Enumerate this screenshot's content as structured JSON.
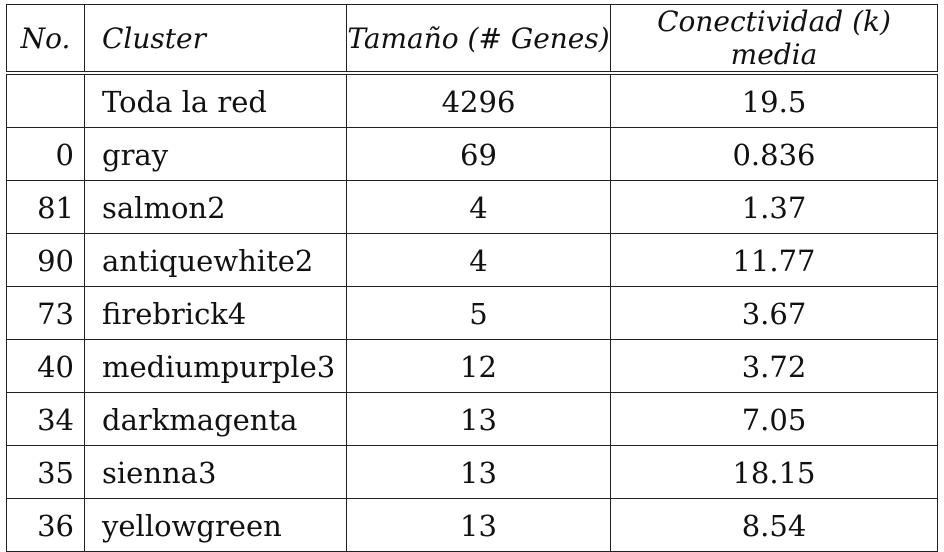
{
  "table": {
    "headers": {
      "no": "No.",
      "cluster": "Cluster",
      "size": "Tamaño (# Genes)",
      "connectivity": "Conectividad (k) media"
    },
    "rows": [
      {
        "no": "",
        "cluster": "Toda la red",
        "size": "4296",
        "connectivity": "19.5"
      },
      {
        "no": "0",
        "cluster": "gray",
        "size": "69",
        "connectivity": "0.836"
      },
      {
        "no": "81",
        "cluster": "salmon2",
        "size": "4",
        "connectivity": "1.37"
      },
      {
        "no": "90",
        "cluster": "antiquewhite2",
        "size": "4",
        "connectivity": "11.77"
      },
      {
        "no": "73",
        "cluster": "firebrick4",
        "size": "5",
        "connectivity": "3.67"
      },
      {
        "no": "40",
        "cluster": "mediumpurple3",
        "size": "12",
        "connectivity": "3.72"
      },
      {
        "no": "34",
        "cluster": "darkmagenta",
        "size": "13",
        "connectivity": "7.05"
      },
      {
        "no": "35",
        "cluster": "sienna3",
        "size": "13",
        "connectivity": "18.15"
      },
      {
        "no": "36",
        "cluster": "yellowgreen",
        "size": "13",
        "connectivity": "8.54"
      }
    ]
  }
}
